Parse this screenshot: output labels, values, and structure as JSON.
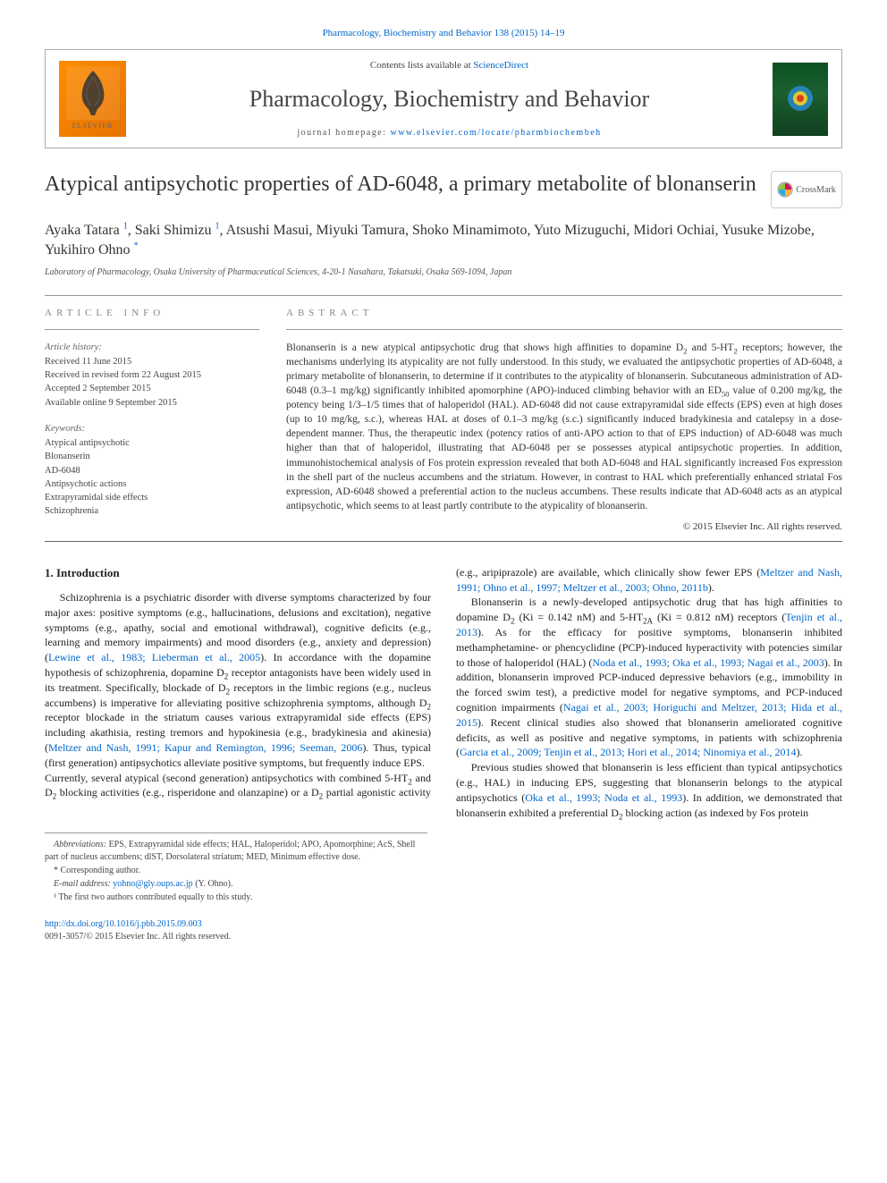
{
  "citation_line": "Pharmacology, Biochemistry and Behavior 138 (2015) 14–19",
  "header": {
    "contents_prefix": "Contents lists available at ",
    "contents_link": "ScienceDirect",
    "journal_name": "Pharmacology, Biochemistry and Behavior",
    "homepage_prefix": "journal homepage: ",
    "homepage_url": "www.elsevier.com/locate/pharmbiochembeh",
    "elsevier_label": "ELSEVIER"
  },
  "title": "Atypical antipsychotic properties of AD-6048, a primary metabolite of blonanserin",
  "crossmark_label": "CrossMark",
  "authors_html": "Ayaka Tatara <sup>1</sup>, Saki Shimizu <sup>1</sup>, Atsushi Masui, Miyuki Tamura, Shoko Minamimoto, Yuto Mizuguchi, Midori Ochiai, Yusuke Mizobe, Yukihiro Ohno <sup>*</sup>",
  "affiliation": "Laboratory of Pharmacology, Osaka University of Pharmaceutical Sciences, 4-20-1 Nasahara, Takatsuki, Osaka 569-1094, Japan",
  "article_info": {
    "label": "article info",
    "history_hdr": "Article history:",
    "history": [
      "Received 11 June 2015",
      "Received in revised form 22 August 2015",
      "Accepted 2 September 2015",
      "Available online 9 September 2015"
    ],
    "keywords_hdr": "Keywords:",
    "keywords": [
      "Atypical antipsychotic",
      "Blonanserin",
      "AD-6048",
      "Antipsychotic actions",
      "Extrapyramidal side effects",
      "Schizophrenia"
    ]
  },
  "abstract": {
    "label": "abstract",
    "text_html": "Blonanserin is a new atypical antipsychotic drug that shows high affinities to dopamine D<sub>2</sub> and 5-HT<sub>2</sub> receptors; however, the mechanisms underlying its atypicality are not fully understood. In this study, we evaluated the antipsychotic properties of AD-6048, a primary metabolite of blonanserin, to determine if it contributes to the atypicality of blonanserin. Subcutaneous administration of AD-6048 (0.3–1 mg/kg) significantly inhibited apomorphine (APO)-induced climbing behavior with an ED<sub>50</sub> value of 0.200 mg/kg, the potency being 1/3–1/5 times that of haloperidol (HAL). AD-6048 did not cause extrapyramidal side effects (EPS) even at high doses (up to 10 mg/kg, s.c.), whereas HAL at doses of 0.1–3 mg/kg (s.c.) significantly induced bradykinesia and catalepsy in a dose-dependent manner. Thus, the therapeutic index (potency ratios of anti-APO action to that of EPS induction) of AD-6048 was much higher than that of haloperidol, illustrating that AD-6048 per se possesses atypical antipsychotic properties. In addition, immunohistochemical analysis of Fos protein expression revealed that both AD-6048 and HAL significantly increased Fos expression in the shell part of the nucleus accumbens and the striatum. However, in contrast to HAL which preferentially enhanced striatal Fos expression, AD-6048 showed a preferential action to the nucleus accumbens. These results indicate that AD-6048 acts as an atypical antipsychotic, which seems to at least partly contribute to the atypicality of blonanserin.",
    "copyright": "© 2015 Elsevier Inc. All rights reserved."
  },
  "intro": {
    "heading": "1. Introduction",
    "p1_html": "Schizophrenia is a psychiatric disorder with diverse symptoms characterized by four major axes: positive symptoms (e.g., hallucinations, delusions and excitation), negative symptoms (e.g., apathy, social and emotional withdrawal), cognitive deficits (e.g., learning and memory impairments) and mood disorders (e.g., anxiety and depression) (<span class='cite'>Lewine et al., 1983; Lieberman et al., 2005</span>). In accordance with the dopamine hypothesis of schizophrenia, dopamine D<sub>2</sub> receptor antagonists have been widely used in its treatment. Specifically, blockade of D<sub>2</sub> receptors in the limbic regions (e.g., nucleus accumbens) is imperative for alleviating positive schizophrenia symptoms, although D<sub>2</sub> receptor blockade in the striatum causes various extrapyramidal side effects (EPS) including akathisia, resting tremors and hypokinesia (e.g., bradykinesia and akinesia) (<span class='cite'>Meltzer and Nash, 1991; Kapur and Remington, 1996; Seeman, 2006</span>). Thus, typical (first generation) antipsychotics alleviate positive symptoms, but frequently induce EPS.",
    "p1b_html": "Currently, several atypical (second generation) antipsychotics with combined 5-HT<sub>2</sub> and D<sub>2</sub> blocking activities (e.g., risperidone and olanzapine) or a D<sub>2</sub> partial agonistic activity (e.g., aripiprazole) are available, which clinically show fewer EPS (<span class='cite'>Meltzer and Nash, 1991; Ohno et al., 1997; Meltzer et al., 2003; Ohno, 2011b</span>).",
    "p2_html": "Blonanserin is a newly-developed antipsychotic drug that has high affinities to dopamine D<sub>2</sub> (Ki = 0.142 nM) and 5-HT<sub>2A</sub> (Ki = 0.812 nM) receptors (<span class='cite'>Tenjin et al., 2013</span>). As for the efficacy for positive symptoms, blonanserin inhibited methamphetamine- or phencyclidine (PCP)-induced hyperactivity with potencies similar to those of haloperidol (HAL) (<span class='cite'>Noda et al., 1993; Oka et al., 1993; Nagai et al., 2003</span>). In addition, blonanserin improved PCP-induced depressive behaviors (e.g., immobility in the forced swim test), a predictive model for negative symptoms, and PCP-induced cognition impairments (<span class='cite'>Nagai et al., 2003; Horiguchi and Meltzer, 2013; Hida et al., 2015</span>). Recent clinical studies also showed that blonanserin ameliorated cognitive deficits, as well as positive and negative symptoms, in patients with schizophrenia (<span class='cite'>Garcia et al., 2009; Tenjin et al., 2013; Hori et al., 2014; Ninomiya et al., 2014</span>).",
    "p3_html": "Previous studies showed that blonanserin is less efficient than typical antipsychotics (e.g., HAL) in inducing EPS, suggesting that blonanserin belongs to the atypical antipsychotics (<span class='cite'>Oka et al., 1993; Noda et al., 1993</span>). In addition, we demonstrated that blonanserin exhibited a preferential D<sub>2</sub> blocking action (as indexed by Fos protein"
  },
  "footnotes": {
    "abbrev_html": "<i>Abbreviations:</i> EPS, Extrapyramidal side effects; HAL, Haloperidol; APO, Apomorphine; AcS, Shell part of nucleus accumbens; dlST, Dorsolateral striatum; MED, Minimum effective dose.",
    "corr": "* Corresponding author.",
    "email_label": "E-mail address:",
    "email": "yohno@gly.oups.ac.jp",
    "email_person": "(Y. Ohno).",
    "equal": "¹ The first two authors contributed equally to this study."
  },
  "footer": {
    "doi": "http://dx.doi.org/10.1016/j.pbb.2015.09.003",
    "issn_copyright": "0091-3057/© 2015 Elsevier Inc. All rights reserved."
  },
  "colors": {
    "link": "#0066cc",
    "text": "#222222",
    "rule": "#999999",
    "meta_label": "#888888",
    "elsevier_orange": "#ff8c00",
    "cover_green": "#0a5020"
  }
}
